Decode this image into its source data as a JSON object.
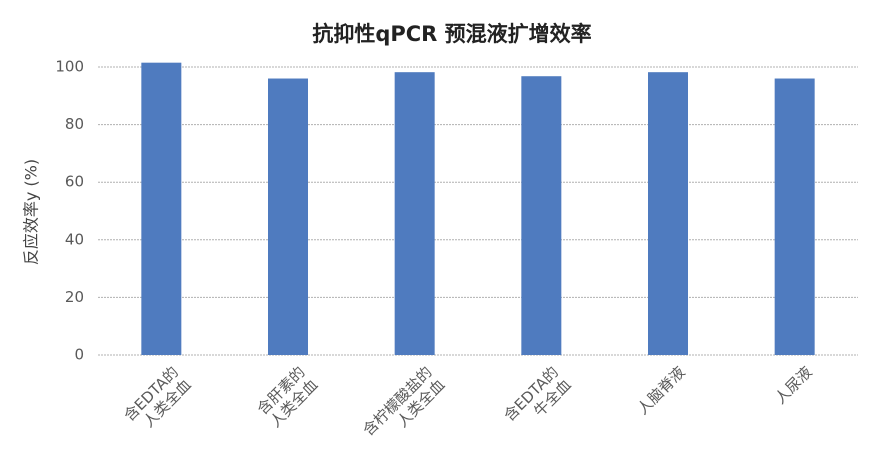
{
  "chart_data": {
    "type": "bar",
    "title": "抗抑性qPCR 预混液扩增效率",
    "y_label": "反应效率y (%)",
    "categories": [
      "含EDTA的\n人类全血",
      "含肝素的\n人类全血",
      "含柠檬酸盐的\n人类全血",
      "含EDTA的\n牛全血",
      "人脑脊液",
      "人尿液"
    ],
    "values": [
      101.5,
      96,
      98.2,
      96.8,
      98.2,
      96
    ],
    "color": "#4f7bbf",
    "ylim": [
      0,
      100
    ],
    "yticks": [
      0,
      20,
      40,
      60,
      80,
      100
    ],
    "grid": true
  }
}
